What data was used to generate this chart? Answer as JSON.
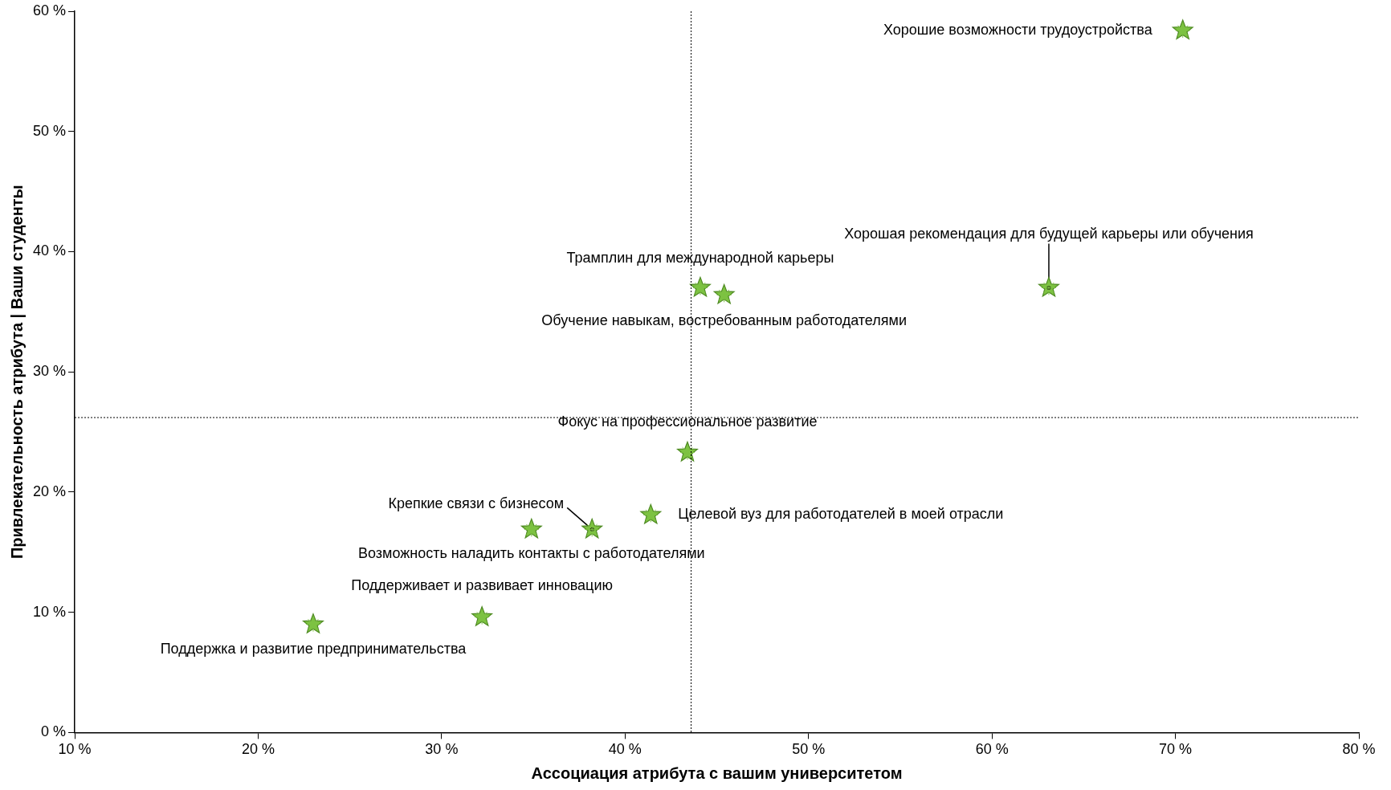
{
  "chart_data": {
    "type": "scatter",
    "xlabel": "Ассоциация атрибута с вашим университетом",
    "ylabel": "Привлекательность атрибута | Ваши студенты",
    "x": [
      70.4,
      63.1,
      44.1,
      45.4,
      43.4,
      41.4,
      38.2,
      34.9,
      32.2,
      23.0
    ],
    "values": [
      58.4,
      37.0,
      37.0,
      36.4,
      23.3,
      18.1,
      16.9,
      16.9,
      9.6,
      9.0
    ],
    "color": "#7dc242",
    "marker": "star",
    "grid": false,
    "legend": false,
    "xlim": [
      10,
      80
    ],
    "ylim": [
      0,
      60
    ],
    "xticks": [
      {
        "value": 10,
        "label": "10 %"
      },
      {
        "value": 20,
        "label": "20 %"
      },
      {
        "value": 30,
        "label": "30 %"
      },
      {
        "value": 40,
        "label": "40 %"
      },
      {
        "value": 50,
        "label": "50 %"
      },
      {
        "value": 60,
        "label": "60 %"
      },
      {
        "value": 70,
        "label": "70 %"
      },
      {
        "value": 80,
        "label": "80 %"
      }
    ],
    "yticks": [
      {
        "value": 0,
        "label": "0 %"
      },
      {
        "value": 10,
        "label": "10 %"
      },
      {
        "value": 20,
        "label": "20 %"
      },
      {
        "value": 30,
        "label": "30 %"
      },
      {
        "value": 40,
        "label": "40 %"
      },
      {
        "value": 50,
        "label": "50 %"
      },
      {
        "value": 60,
        "label": "60 %"
      }
    ],
    "ref_lines": [
      {
        "axis": "x",
        "value": 43.6,
        "line_style": "dotted",
        "color": "#000000"
      },
      {
        "axis": "y",
        "value": 26.2,
        "line_style": "dotted",
        "color": "#000000"
      }
    ],
    "annotations": [
      {
        "text": "Хорошие возможности трудоустройства",
        "x": 70.4,
        "y": 58.4
      },
      {
        "text": "Хорошая рекомендация для будущей карьеры или обучения",
        "x": 63.1,
        "y": 37.0
      },
      {
        "text": "Трамплин для международной карьеры",
        "x": 44.1,
        "y": 37.0
      },
      {
        "text": "Обучение навыкам, востребованным работодателями",
        "x": 45.4,
        "y": 36.4
      },
      {
        "text": "Фокус на профессиональное развитие",
        "x": 43.4,
        "y": 23.3
      },
      {
        "text": "Целевой вуз для работодателей в моей отрасли",
        "x": 41.4,
        "y": 18.1
      },
      {
        "text": "Крепкие связи с бизнесом",
        "x": 38.2,
        "y": 16.9
      },
      {
        "text": "Возможность наладить контакты с работодателями",
        "x": 34.9,
        "y": 16.9
      },
      {
        "text": "Поддерживает и развивает инновацию",
        "x": 32.2,
        "y": 9.6
      },
      {
        "text": "Поддержка и развитие предпринимательства",
        "x": 23.0,
        "y": 9.0
      }
    ]
  }
}
